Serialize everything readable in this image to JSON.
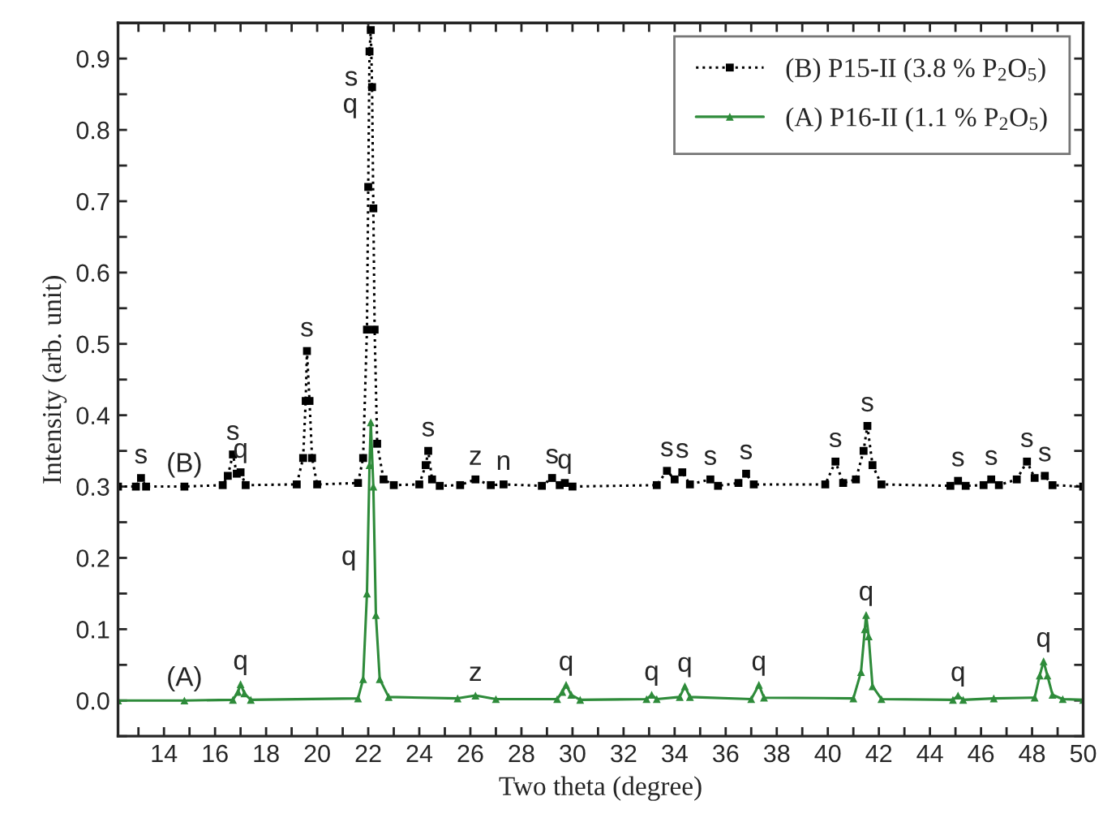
{
  "chart_data": {
    "type": "line",
    "xlabel": "Two theta (degree)",
    "ylabel": "Intensity (arb. unit)",
    "xlim": [
      12.2,
      50
    ],
    "ylim": [
      -0.05,
      0.95
    ],
    "xticks": [
      {
        "value": 13,
        "label": null
      },
      14,
      {
        "value": 15,
        "label": null
      },
      16,
      {
        "value": 17,
        "label": null
      },
      18,
      {
        "value": 19,
        "label": null
      },
      20,
      {
        "value": 21,
        "label": null
      },
      22,
      {
        "value": 23,
        "label": null
      },
      24,
      {
        "value": 25,
        "label": null
      },
      26,
      {
        "value": 27,
        "label": null
      },
      28,
      {
        "value": 29,
        "label": null
      },
      30,
      {
        "value": 31,
        "label": null
      },
      32,
      {
        "value": 33,
        "label": null
      },
      34,
      {
        "value": 35,
        "label": null
      },
      36,
      {
        "value": 37,
        "label": null
      },
      38,
      {
        "value": 39,
        "label": null
      },
      40,
      {
        "value": 41,
        "label": null
      },
      42,
      {
        "value": 43,
        "label": null
      },
      44,
      {
        "value": 45,
        "label": null
      },
      46,
      {
        "value": 47,
        "label": null
      },
      48,
      {
        "value": 49,
        "label": null
      },
      50
    ],
    "yticks": [
      {
        "value": -0.05,
        "label": null
      },
      {
        "value": 0,
        "label": "0.0"
      },
      {
        "value": 0.05,
        "label": null
      },
      0.1,
      {
        "value": 0.15,
        "label": null
      },
      0.2,
      {
        "value": 0.25,
        "label": null
      },
      0.3,
      {
        "value": 0.35,
        "label": null
      },
      0.4,
      {
        "value": 0.45,
        "label": null
      },
      0.5,
      {
        "value": 0.55,
        "label": null
      },
      0.6,
      {
        "value": 0.65,
        "label": null
      },
      0.7,
      {
        "value": 0.75,
        "label": null
      },
      0.8,
      {
        "value": 0.85,
        "label": null
      },
      0.9
    ],
    "grid": false,
    "legend": "top right",
    "series": [
      {
        "name": "(B) P15-II (3.8 % P$_{2}$O$_{5}$)",
        "color": "#000000",
        "marker": "square",
        "line_style": "dotted",
        "x": [
          12.2,
          12.9,
          13.1,
          13.3,
          14.8,
          16.3,
          16.5,
          16.7,
          16.85,
          17.0,
          17.2,
          19.2,
          19.45,
          19.55,
          19.6,
          19.7,
          19.8,
          20.0,
          21.6,
          21.8,
          21.95,
          22.0,
          22.05,
          22.1,
          22.15,
          22.2,
          22.25,
          22.35,
          22.6,
          23.0,
          24.0,
          24.25,
          24.35,
          24.5,
          24.8,
          25.6,
          26.2,
          26.8,
          27.3,
          28.8,
          29.2,
          29.5,
          29.7,
          30.0,
          33.3,
          33.7,
          34.0,
          34.3,
          34.6,
          35.4,
          35.7,
          36.5,
          36.8,
          37.1,
          39.9,
          40.3,
          40.6,
          41.1,
          41.4,
          41.55,
          41.75,
          42.1,
          44.8,
          45.1,
          45.4,
          46.1,
          46.4,
          46.7,
          47.4,
          47.8,
          48.1,
          48.5,
          48.8,
          50.0
        ],
        "values": [
          0.3,
          0.3,
          0.312,
          0.3,
          0.3,
          0.302,
          0.315,
          0.345,
          0.318,
          0.32,
          0.302,
          0.303,
          0.34,
          0.42,
          0.49,
          0.42,
          0.34,
          0.303,
          0.305,
          0.34,
          0.52,
          0.72,
          0.91,
          0.94,
          0.86,
          0.69,
          0.52,
          0.36,
          0.31,
          0.302,
          0.303,
          0.33,
          0.35,
          0.31,
          0.301,
          0.302,
          0.31,
          0.302,
          0.303,
          0.301,
          0.312,
          0.302,
          0.305,
          0.3,
          0.302,
          0.322,
          0.31,
          0.32,
          0.303,
          0.31,
          0.301,
          0.305,
          0.318,
          0.303,
          0.303,
          0.335,
          0.305,
          0.31,
          0.35,
          0.385,
          0.33,
          0.303,
          0.301,
          0.308,
          0.301,
          0.302,
          0.31,
          0.302,
          0.31,
          0.335,
          0.312,
          0.315,
          0.302,
          0.3
        ]
      },
      {
        "name": "(A) P16-II (1.1 % P$_{2}$O$_{5}$)",
        "color": "#2e8b3a",
        "marker": "triangle",
        "line_style": "solid",
        "x": [
          12.2,
          14.8,
          16.7,
          16.9,
          17.0,
          17.15,
          17.4,
          21.6,
          21.8,
          21.95,
          22.05,
          22.1,
          22.2,
          22.3,
          22.45,
          22.8,
          25.5,
          26.2,
          27.0,
          29.4,
          29.6,
          29.75,
          29.95,
          30.3,
          32.9,
          33.1,
          33.3,
          34.2,
          34.4,
          34.6,
          37.0,
          37.3,
          37.5,
          41.0,
          41.3,
          41.45,
          41.5,
          41.6,
          41.75,
          42.1,
          44.9,
          45.1,
          45.3,
          46.5,
          48.1,
          48.3,
          48.45,
          48.6,
          48.8,
          49.2,
          50.0
        ],
        "values": [
          0.0,
          0.0,
          0.001,
          0.012,
          0.023,
          0.01,
          0.001,
          0.003,
          0.03,
          0.15,
          0.33,
          0.39,
          0.3,
          0.12,
          0.03,
          0.005,
          0.003,
          0.007,
          0.002,
          0.002,
          0.012,
          0.022,
          0.008,
          0.001,
          0.002,
          0.008,
          0.002,
          0.005,
          0.02,
          0.005,
          0.002,
          0.022,
          0.004,
          0.003,
          0.04,
          0.1,
          0.12,
          0.09,
          0.02,
          0.002,
          0.001,
          0.007,
          0.001,
          0.003,
          0.004,
          0.035,
          0.055,
          0.035,
          0.008,
          0.002,
          0.001
        ]
      }
    ],
    "annotations": [
      {
        "text": "s",
        "x": 13.1,
        "y": 0.312
      },
      {
        "text": "(B)",
        "x": 14.8,
        "y": 0.3
      },
      {
        "text": "s",
        "x": 16.7,
        "y": 0.345
      },
      {
        "text": "q",
        "x": 17.0,
        "y": 0.32
      },
      {
        "text": "s",
        "x": 19.6,
        "y": 0.49
      },
      {
        "text": "s",
        "x": 22.04,
        "y": 0.872
      },
      {
        "text": "q",
        "x": 22.03,
        "y": 0.834
      },
      {
        "text": "s",
        "x": 24.35,
        "y": 0.35
      },
      {
        "text": "z",
        "x": 26.2,
        "y": 0.31
      },
      {
        "text": "n",
        "x": 27.3,
        "y": 0.303
      },
      {
        "text": "s",
        "x": 29.2,
        "y": 0.312
      },
      {
        "text": "q",
        "x": 29.7,
        "y": 0.305
      },
      {
        "text": "s",
        "x": 33.7,
        "y": 0.322
      },
      {
        "text": "s",
        "x": 34.3,
        "y": 0.32
      },
      {
        "text": "s",
        "x": 35.4,
        "y": 0.31
      },
      {
        "text": "s",
        "x": 36.8,
        "y": 0.318
      },
      {
        "text": "s",
        "x": 40.3,
        "y": 0.335
      },
      {
        "text": "s",
        "x": 41.55,
        "y": 0.385
      },
      {
        "text": "s",
        "x": 45.1,
        "y": 0.308
      },
      {
        "text": "s",
        "x": 46.4,
        "y": 0.31
      },
      {
        "text": "s",
        "x": 47.8,
        "y": 0.335
      },
      {
        "text": "s",
        "x": 48.5,
        "y": 0.315
      },
      {
        "text": "(A)",
        "x": 14.8,
        "y": 0.0
      },
      {
        "text": "q",
        "x": 17.0,
        "y": 0.023
      },
      {
        "text": "q",
        "x": 21.978,
        "y": 0.2
      },
      {
        "text": "z",
        "x": 26.2,
        "y": 0.007
      },
      {
        "text": "q",
        "x": 29.75,
        "y": 0.022
      },
      {
        "text": "q",
        "x": 33.1,
        "y": 0.008
      },
      {
        "text": "q",
        "x": 34.4,
        "y": 0.02
      },
      {
        "text": "q",
        "x": 37.3,
        "y": 0.022
      },
      {
        "text": "q",
        "x": 41.5,
        "y": 0.12
      },
      {
        "text": "q",
        "x": 45.1,
        "y": 0.007
      },
      {
        "text": "q",
        "x": 48.45,
        "y": 0.055
      }
    ]
  }
}
